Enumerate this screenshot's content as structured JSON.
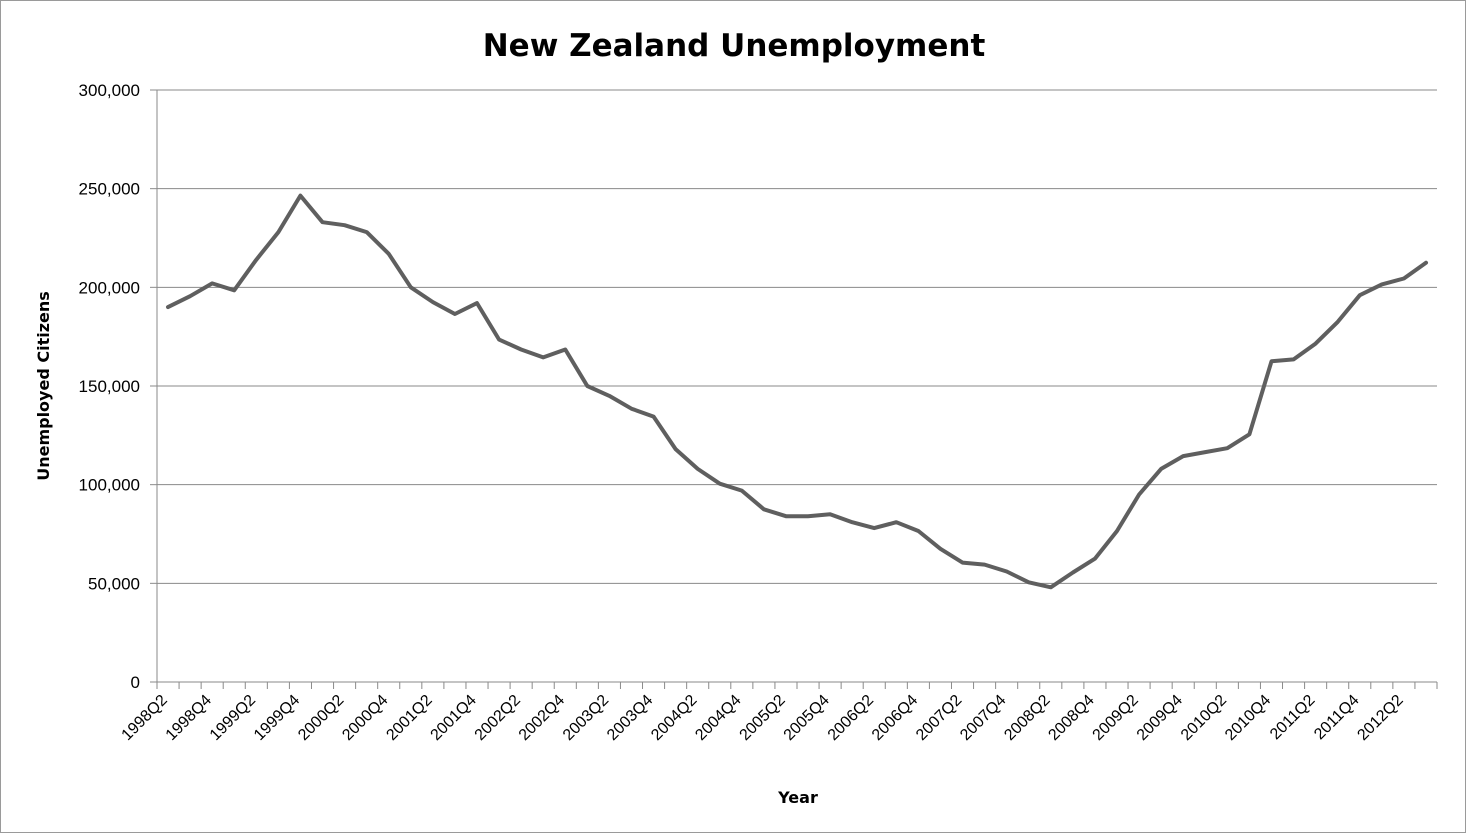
{
  "chart_data": {
    "type": "line",
    "title": "New Zealand Unemployment",
    "xlabel": "Year",
    "ylabel": "Unemployed Citizens",
    "ylim": [
      0,
      300000
    ],
    "yticks": [
      0,
      50000,
      100000,
      150000,
      200000,
      250000,
      300000
    ],
    "ytick_labels": [
      "0",
      "50,000",
      "100,000",
      "150,000",
      "200,000",
      "250,000",
      "300,000"
    ],
    "grid": true,
    "legend": "none",
    "line_color": "#5f5f5f",
    "categories": [
      "1998Q2",
      "1998Q3",
      "1998Q4",
      "1999Q1",
      "1999Q2",
      "1999Q3",
      "1999Q4",
      "2000Q1",
      "2000Q2",
      "2000Q3",
      "2000Q4",
      "2001Q1",
      "2001Q2",
      "2001Q3",
      "2001Q4",
      "2002Q1",
      "2002Q2",
      "2002Q3",
      "2002Q4",
      "2003Q1",
      "2003Q2",
      "2003Q3",
      "2003Q4",
      "2004Q1",
      "2004Q2",
      "2004Q3",
      "2004Q4",
      "2005Q1",
      "2005Q2",
      "2005Q3",
      "2005Q4",
      "2006Q1",
      "2006Q2",
      "2006Q3",
      "2006Q4",
      "2007Q1",
      "2007Q2",
      "2007Q3",
      "2007Q4",
      "2008Q1",
      "2008Q2",
      "2008Q3",
      "2008Q4",
      "2009Q1",
      "2009Q2",
      "2009Q3",
      "2009Q4",
      "2010Q1",
      "2010Q2",
      "2010Q3",
      "2010Q4",
      "2011Q1",
      "2011Q2",
      "2011Q3",
      "2011Q4",
      "2012Q1",
      "2012Q2",
      "2012Q3"
    ],
    "tick_labels": [
      "1998Q2",
      "1998Q4",
      "1999Q2",
      "1999Q4",
      "2000Q2",
      "2000Q4",
      "2001Q2",
      "2001Q4",
      "2002Q2",
      "2002Q4",
      "2003Q2",
      "2003Q4",
      "2004Q2",
      "2004Q4",
      "2005Q2",
      "2005Q4",
      "2006Q2",
      "2006Q4",
      "2007Q2",
      "2007Q4",
      "2008Q2",
      "2008Q4",
      "2009Q2",
      "2009Q4",
      "2010Q2",
      "2010Q4",
      "2011Q2",
      "2011Q4",
      "2012Q2"
    ],
    "series": [
      {
        "values": [
          190000,
          195500,
          202000,
          198500,
          214000,
          228000,
          246500,
          233000,
          231500,
          228000,
          217000,
          200000,
          192500,
          186500,
          192000,
          173500,
          168500,
          164500,
          168500,
          150000,
          145000,
          138500,
          134500,
          118000,
          108000,
          100500,
          97000,
          87500,
          84000,
          84000,
          85000,
          81000,
          78000,
          81000,
          76500,
          67500,
          60500,
          59500,
          56000,
          50500,
          48000,
          55500,
          62500,
          76500,
          95000,
          108000,
          114500,
          116500,
          118500,
          125500,
          162500,
          163500,
          171500,
          182500,
          196000,
          201500,
          204500,
          212500
        ]
      }
    ]
  }
}
